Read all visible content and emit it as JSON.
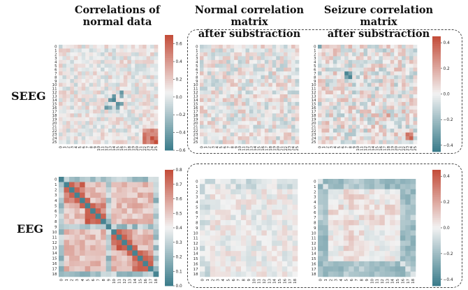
{
  "headers": {
    "col1_line1": "Correlations of",
    "col1_line2": "normal data",
    "col2_line1": "Normal correlation matrix",
    "col2_line2": "after substraction",
    "col3_line1": "Seizure correlation matrix",
    "col3_line2": "after substraction"
  },
  "rows": {
    "seeg": "SEEG",
    "eeg": "EEG"
  },
  "colormap": {
    "low": "#3d7d8c",
    "mid": "#f2f2f2",
    "high": "#c44e3b"
  },
  "chart_data": [
    {
      "id": "seeg-normal",
      "type": "heatmap",
      "n": 26,
      "xticks": [
        "0",
        "1",
        "2",
        "3",
        "4",
        "5",
        "6",
        "7",
        "8",
        "9",
        "10",
        "11",
        "12",
        "13",
        "14",
        "15",
        "16",
        "17",
        "18",
        "19",
        "20",
        "21",
        "22",
        "23",
        "24",
        "25"
      ],
      "yticks": [
        "0",
        "1",
        "2",
        "3",
        "4",
        "5",
        "6",
        "7",
        "8",
        "9",
        "10",
        "11",
        "12",
        "13",
        "14",
        "15",
        "16",
        "17",
        "18",
        "19",
        "20",
        "21",
        "22",
        "23",
        "24",
        "25"
      ],
      "vmin": -0.6,
      "vmax": 0.7,
      "colorbar_ticks": [
        "0.6",
        "0.4",
        "0.2",
        "0.0",
        "−0.2",
        "−0.4",
        "−0.6"
      ],
      "colorbar_values": [
        0.6,
        0.4,
        0.2,
        0.0,
        -0.2,
        -0.4,
        -0.6
      ],
      "pattern": "weak positive correlations with a block at 22–25 near 0.6 and strong negative cells near 13–16",
      "strong_cells": [
        [
          24,
          24,
          0.7
        ],
        [
          25,
          25,
          0.7
        ],
        [
          24,
          25,
          0.55
        ],
        [
          23,
          24,
          0.45
        ],
        [
          14,
          14,
          -0.55
        ],
        [
          15,
          15,
          -0.5
        ],
        [
          13,
          14,
          -0.45
        ],
        [
          16,
          15,
          -0.4
        ],
        [
          12,
          16,
          -0.45
        ],
        [
          16,
          13,
          -0.35
        ]
      ]
    },
    {
      "id": "seeg-normal-sub",
      "type": "heatmap",
      "n": 26,
      "xticks": [
        "0",
        "1",
        "2",
        "3",
        "4",
        "5",
        "6",
        "7",
        "8",
        "9",
        "10",
        "11",
        "12",
        "13",
        "14",
        "15",
        "16",
        "17",
        "18",
        "19",
        "20",
        "21",
        "22",
        "23",
        "24",
        "25"
      ],
      "yticks": [
        "0",
        "1",
        "2",
        "3",
        "4",
        "5",
        "6",
        "7",
        "8",
        "9",
        "10",
        "11",
        "12",
        "13",
        "14",
        "15",
        "16",
        "17",
        "18",
        "19",
        "20",
        "21",
        "22",
        "23",
        "24",
        "25"
      ],
      "vmin": -0.45,
      "vmax": 0.45,
      "pattern": "near-zero residuals; colorbar shared with seizure SEEG panel",
      "strong_cells": []
    },
    {
      "id": "seeg-seizure-sub",
      "type": "heatmap",
      "n": 26,
      "xticks": [
        "0",
        "1",
        "2",
        "3",
        "4",
        "5",
        "6",
        "7",
        "8",
        "9",
        "10",
        "11",
        "12",
        "13",
        "14",
        "15",
        "16",
        "17",
        "18",
        "19",
        "20",
        "21",
        "22",
        "23",
        "24",
        "25"
      ],
      "yticks": [
        "0",
        "1",
        "2",
        "3",
        "4",
        "5",
        "6",
        "7",
        "8",
        "9",
        "10",
        "11",
        "12",
        "13",
        "14",
        "15",
        "16",
        "17",
        "18",
        "19",
        "20",
        "21",
        "22",
        "23",
        "24",
        "25"
      ],
      "vmin": -0.45,
      "vmax": 0.45,
      "colorbar_ticks": [
        "0.4",
        "0.2",
        "0.0",
        "−0.2",
        "−0.4"
      ],
      "colorbar_values": [
        0.4,
        0.2,
        0.0,
        -0.2,
        -0.4
      ],
      "pattern": "small residuals with strong negative cells near 7–8 and positive cells near 23–24",
      "strong_cells": [
        [
          7,
          7,
          -0.42
        ],
        [
          8,
          8,
          -0.42
        ],
        [
          7,
          8,
          -0.35
        ],
        [
          8,
          7,
          -0.3
        ],
        [
          0,
          0,
          -0.3
        ],
        [
          23,
          23,
          0.35
        ],
        [
          24,
          24,
          0.4
        ],
        [
          18,
          18,
          0.25
        ],
        [
          23,
          24,
          0.3
        ]
      ]
    },
    {
      "id": "eeg-normal",
      "type": "heatmap",
      "n": 19,
      "xticks": [
        "0",
        "1",
        "2",
        "3",
        "4",
        "5",
        "6",
        "7",
        "8",
        "9",
        "10",
        "11",
        "12",
        "13",
        "14",
        "15",
        "16",
        "17",
        "18"
      ],
      "yticks": [
        "0",
        "1",
        "2",
        "3",
        "4",
        "5",
        "6",
        "7",
        "8",
        "9",
        "10",
        "11",
        "12",
        "13",
        "14",
        "15",
        "16",
        "17",
        "18"
      ],
      "vmin": 0.0,
      "vmax": 0.8,
      "colorbar_ticks": [
        "0.8",
        "0.7",
        "0.6",
        "0.5",
        "0.4",
        "0.3",
        "0.2",
        "0.1",
        "0.0"
      ],
      "colorbar_values": [
        0.8,
        0.7,
        0.6,
        0.5,
        0.4,
        0.3,
        0.2,
        0.1,
        0.0
      ],
      "pattern": "diagonal ≈ 0 (teal), high off-diagonal blocks ≈ 0.7–0.8 (red), rows/cols 0, 9, 18 low",
      "strong_cells": []
    },
    {
      "id": "eeg-normal-sub",
      "type": "heatmap",
      "n": 19,
      "xticks": [
        "0",
        "1",
        "2",
        "3",
        "4",
        "5",
        "6",
        "7",
        "8",
        "9",
        "10",
        "11",
        "12",
        "13",
        "14",
        "15",
        "16",
        "17",
        "18"
      ],
      "yticks": [
        "0",
        "1",
        "2",
        "3",
        "4",
        "5",
        "6",
        "7",
        "8",
        "9",
        "10",
        "11",
        "12",
        "13",
        "14",
        "15",
        "16",
        "17",
        "18"
      ],
      "vmin": -0.45,
      "vmax": 0.45,
      "pattern": "mostly near zero; colorbar shared with seizure EEG panel",
      "strong_cells": []
    },
    {
      "id": "eeg-seizure-sub",
      "type": "heatmap",
      "n": 19,
      "xticks": [
        "0",
        "1",
        "2",
        "3",
        "4",
        "5",
        "6",
        "7",
        "8",
        "9",
        "10",
        "11",
        "12",
        "13",
        "14",
        "15",
        "16",
        "17",
        "18"
      ],
      "yticks": [
        "0",
        "1",
        "2",
        "3",
        "4",
        "5",
        "6",
        "7",
        "8",
        "9",
        "10",
        "11",
        "12",
        "13",
        "14",
        "15",
        "16",
        "17",
        "18"
      ],
      "vmin": -0.45,
      "vmax": 0.45,
      "colorbar_ticks": [
        "0.4",
        "0.2",
        "0.0",
        "−0.2",
        "−0.4"
      ],
      "colorbar_values": [
        0.4,
        0.2,
        0.0,
        -0.2,
        -0.4
      ],
      "pattern": "negative border rows/columns (≈ −0.2), near-zero interior with a positive cross near 5–8",
      "strong_cells": []
    }
  ]
}
